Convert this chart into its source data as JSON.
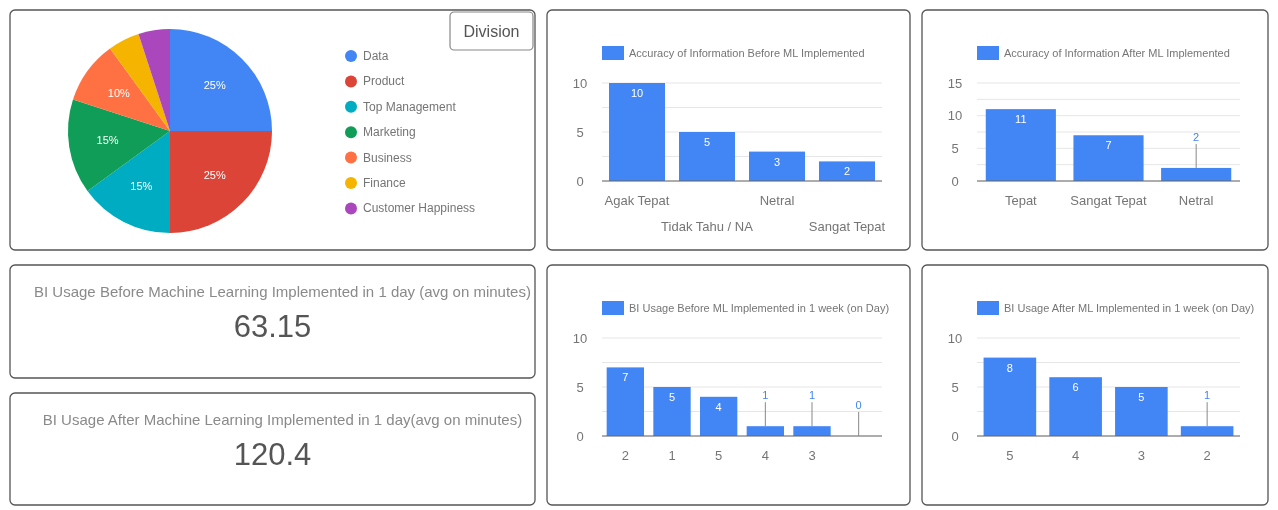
{
  "chart_data": [
    {
      "type": "pie",
      "categories": [
        "Data",
        "Product",
        "Top Management",
        "Marketing",
        "Business",
        "Finance",
        "Customer Happiness"
      ],
      "values": [
        25,
        25,
        15,
        15,
        10,
        5,
        5
      ],
      "colors": [
        "#4285f4",
        "#db4437",
        "#00acc1",
        "#0f9d58",
        "#ff7043",
        "#f4b400",
        "#ab47bc"
      ],
      "value_labels": [
        "25%",
        "25%",
        "15%",
        "15%",
        "10%",
        null,
        null
      ],
      "legend": "right",
      "annotations": [
        "Division"
      ]
    },
    {
      "type": "bar",
      "categories": [
        "Agak Tepat",
        "Tidak Tahu / NA",
        "Netral",
        "Sangat Tepat"
      ],
      "series": [
        {
          "name": "Accuracy of Information Before ML Implemented",
          "color": "#4285f4",
          "values": [
            10,
            5,
            3,
            2
          ]
        }
      ],
      "ylim": [
        0,
        10
      ],
      "yticks": [
        0,
        {
          "value": 2.5,
          "label": null
        },
        5,
        {
          "value": 7.5,
          "label": null
        },
        10
      ],
      "grid": true,
      "legend": "top",
      "data_labels": true
    },
    {
      "type": "bar",
      "categories": [
        "Tepat",
        "Sangat Tepat",
        "Netral"
      ],
      "series": [
        {
          "name": "Accuracy of Information After ML Implemented",
          "color": "#4285f4",
          "values": [
            11,
            7,
            2
          ]
        }
      ],
      "ylim": [
        0,
        15
      ],
      "yticks": [
        0,
        {
          "value": 2.5,
          "label": null
        },
        5,
        {
          "value": 7.5,
          "label": null
        },
        10,
        {
          "value": 12.5,
          "label": null
        },
        15
      ],
      "grid": true,
      "legend": "top",
      "data_labels": true
    },
    {
      "type": "other",
      "title": "BI Usage Before Machine Learning Implemented in 1 day (avg on minutes)",
      "annotations": [
        "63.15"
      ]
    },
    {
      "type": "other",
      "title": "BI Usage After Machine Learning Implemented in 1 day(avg on minutes)",
      "annotations": [
        "120.4"
      ]
    },
    {
      "type": "bar",
      "categories": [
        "2",
        "1",
        "5",
        "4",
        "3",
        null
      ],
      "series": [
        {
          "name": "BI Usage Before ML Implemented in 1 week (on Day)",
          "color": "#4285f4",
          "values": [
            7,
            5,
            4,
            1,
            1,
            0
          ]
        }
      ],
      "ylim": [
        0,
        10
      ],
      "yticks": [
        0,
        {
          "value": 2.5,
          "label": null
        },
        5,
        {
          "value": 7.5,
          "label": null
        },
        10
      ],
      "grid": true,
      "legend": "top",
      "data_labels": true
    },
    {
      "type": "bar",
      "categories": [
        "5",
        "4",
        "3",
        "2"
      ],
      "series": [
        {
          "name": "BI Usage After ML Implemented in 1 week (on Day)",
          "color": "#4285f4",
          "values": [
            8,
            6,
            5,
            1
          ]
        }
      ],
      "ylim": [
        0,
        10
      ],
      "yticks": [
        0,
        {
          "value": 2.5,
          "label": null
        },
        5,
        {
          "value": 7.5,
          "label": null
        },
        10
      ],
      "grid": true,
      "legend": "top",
      "data_labels": true
    }
  ]
}
